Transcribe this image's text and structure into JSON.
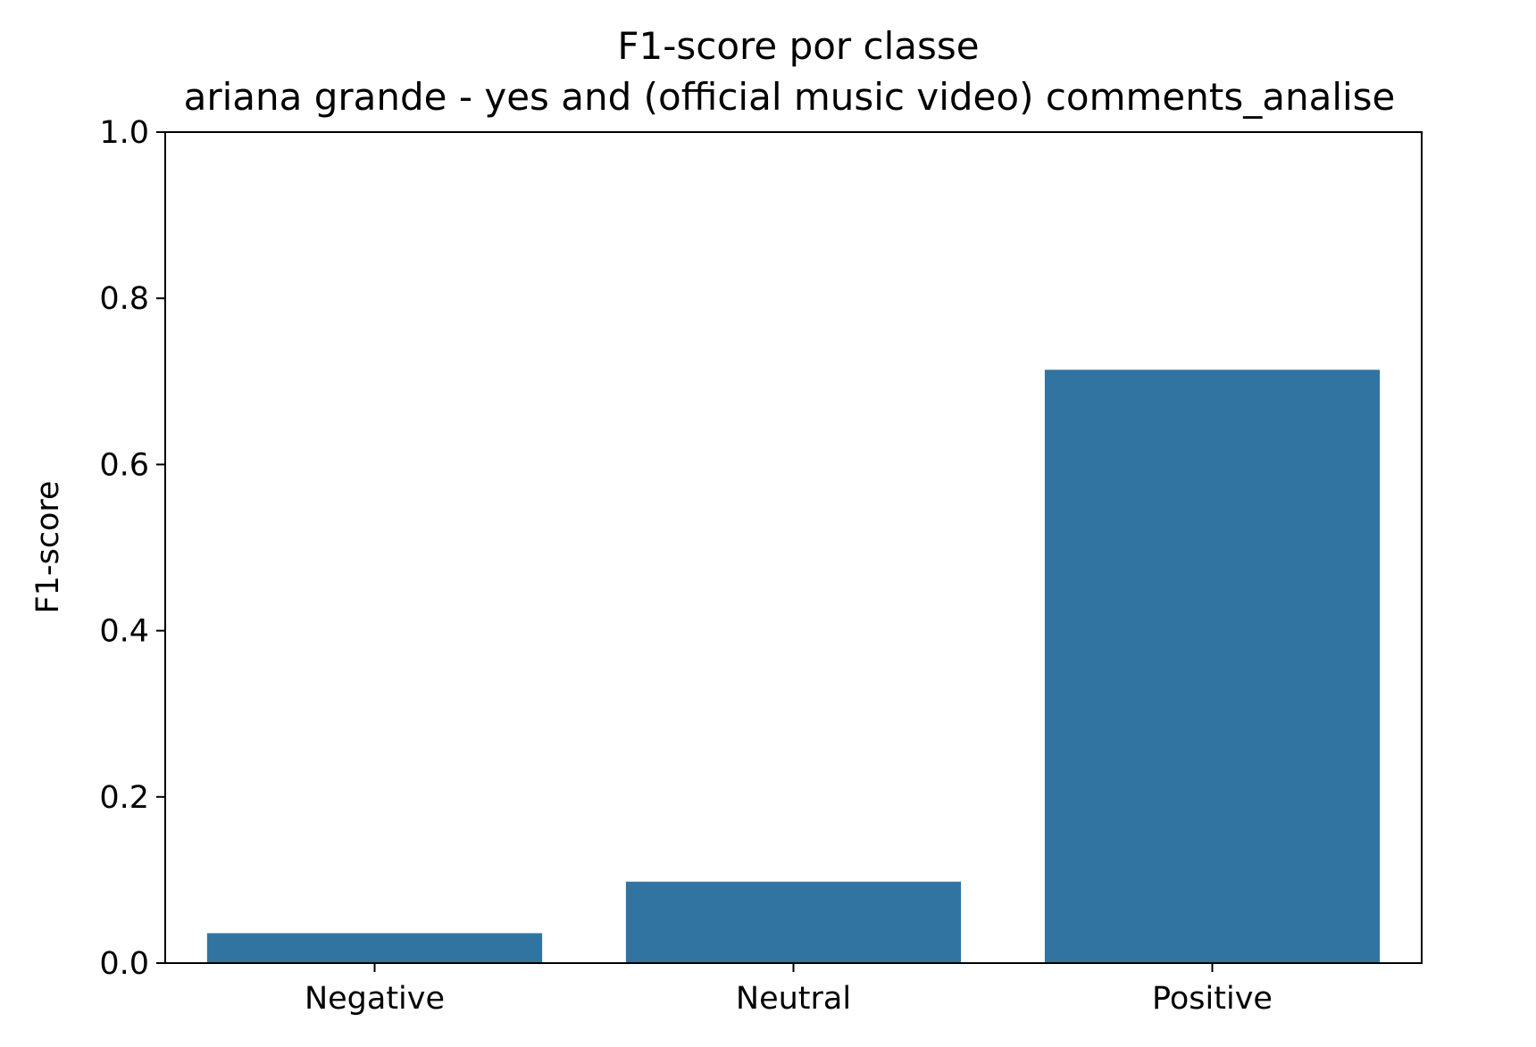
{
  "chart_data": {
    "type": "bar",
    "title": "F1-score por classe",
    "subtitle": "ariana grande - yes and (official music video) comments_analise",
    "xlabel": "",
    "ylabel": "F1-score",
    "categories": [
      "Negative",
      "Neutral",
      "Positive"
    ],
    "values": [
      0.036,
      0.098,
      0.714
    ],
    "ylim": [
      0,
      1.0
    ],
    "yticks": [
      "0.0",
      "0.2",
      "0.4",
      "0.6",
      "0.8",
      "1.0"
    ],
    "grid": false,
    "legend": "none",
    "colors": {
      "bar": "#3274a1",
      "axes": "#000000",
      "background": "#ffffff"
    }
  }
}
